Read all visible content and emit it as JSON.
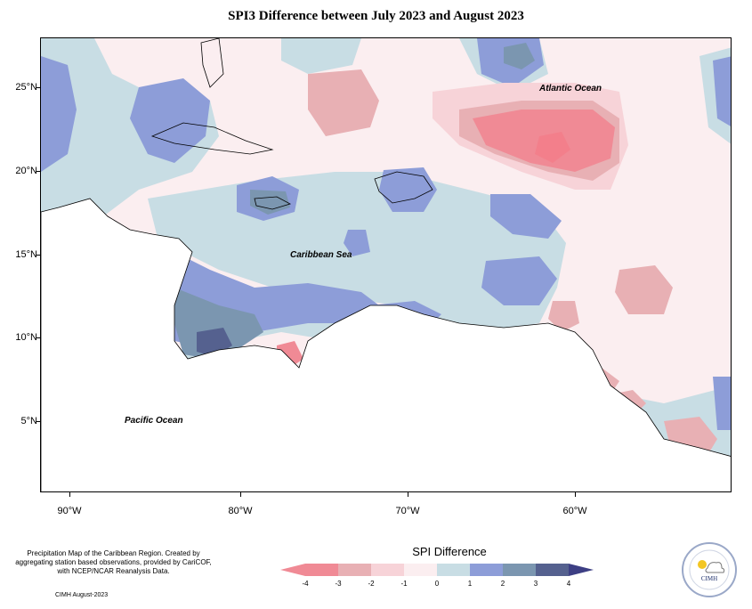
{
  "title": "SPI3 Difference between July 2023 and August 2023",
  "map": {
    "lat_labels": [
      "25°N",
      "20°N",
      "15°N",
      "10°N",
      "5°N"
    ],
    "lon_labels": [
      "90°W",
      "80°W",
      "70°W",
      "60°W"
    ],
    "ocean_labels": {
      "atlantic": "Atlantic Ocean",
      "caribbean": "Caribbean Sea",
      "pacific": "Pacific Ocean"
    }
  },
  "legend": {
    "title": "SPI Difference",
    "tick_labels": [
      "-4",
      "-3",
      "-2",
      "-1",
      "0",
      "1",
      "2",
      "3",
      "4"
    ],
    "colors": [
      "#f08a95",
      "#e8b0b4",
      "#f7d3d8",
      "#fbeef0",
      "#c8dde4",
      "#8d9dd8",
      "#7b96b0",
      "#55618f"
    ]
  },
  "footer": {
    "description": "Precipitation Map of the Caribbean Region. Created by aggregating station based observations, provided by CariCOF, with NCEP/NCAR Reanalysis Data.",
    "credit": "CIMH August-2023"
  },
  "logo": {
    "text": "CIMH",
    "icon": "cimh-sun-cloud-icon"
  }
}
